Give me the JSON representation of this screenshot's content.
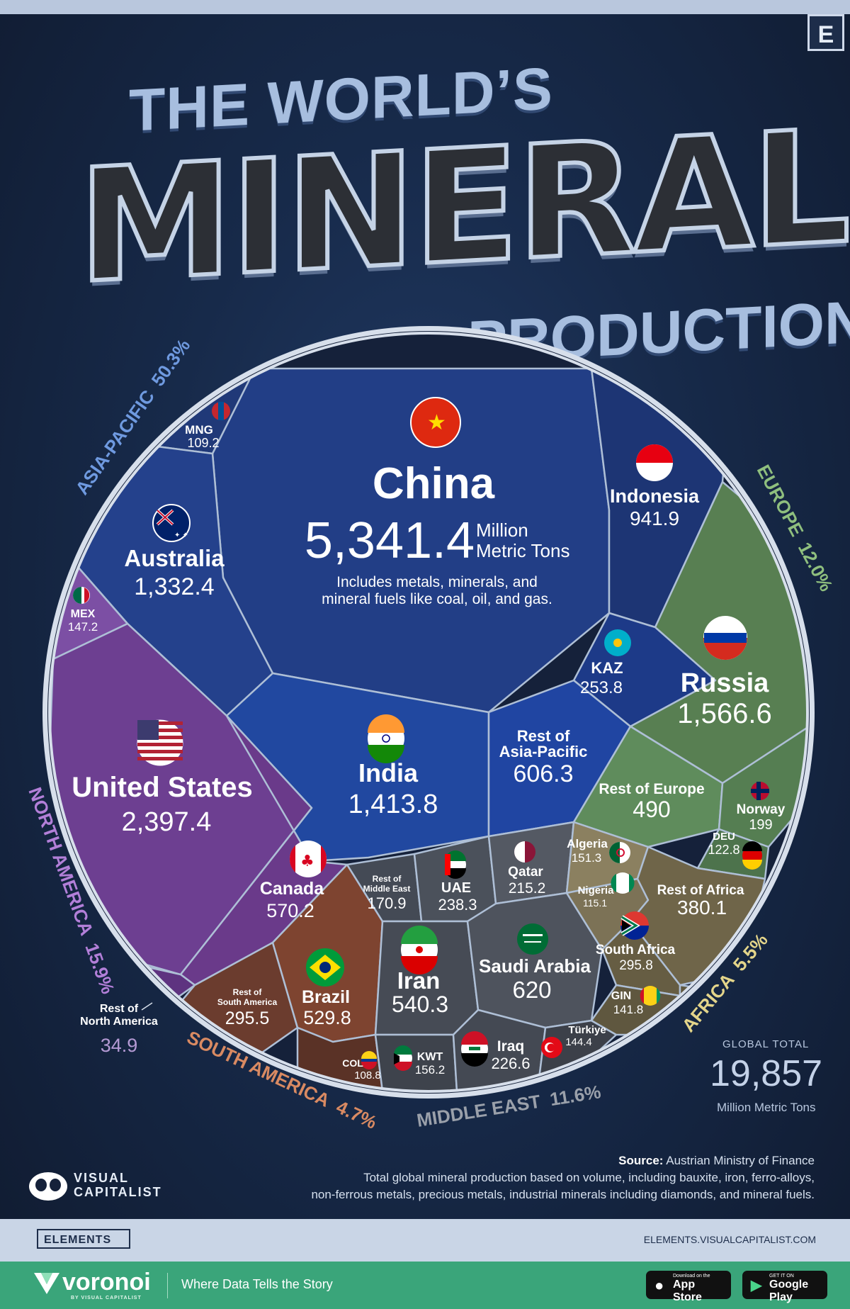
{
  "header": {
    "badge": "E",
    "title_line1": "THE WORLD’S",
    "title_line2": "MINERAL",
    "title_line3": "PRODUCTION"
  },
  "chart_data": {
    "type": "voronoi-treemap",
    "unit": "Million Metric Tons",
    "regions": [
      {
        "name": "ASIA-PACIFIC",
        "share": "50.3%",
        "color": "#5b8ad6"
      },
      {
        "name": "EUROPE",
        "share": "12.0%",
        "color": "#7aa76a"
      },
      {
        "name": "NORTH AMERICA",
        "share": "15.9%",
        "color": "#9a63c0"
      },
      {
        "name": "SOUTH AMERICA",
        "share": "4.7%",
        "color": "#c87852"
      },
      {
        "name": "MIDDLE EAST",
        "share": "11.6%",
        "color": "#8e8e8e"
      },
      {
        "name": "AFRICA",
        "share": "5.5%",
        "color": "#d8c97a"
      }
    ],
    "cells": [
      {
        "name": "China",
        "value": "5,341.4",
        "region": "ASIA-PACIFIC"
      },
      {
        "name": "Indonesia",
        "value": "941.9",
        "region": "ASIA-PACIFIC"
      },
      {
        "name": "Australia",
        "value": "1,332.4",
        "region": "ASIA-PACIFIC"
      },
      {
        "name": "MNG",
        "value": "109.2",
        "region": "ASIA-PACIFIC"
      },
      {
        "name": "India",
        "value": "1,413.8",
        "region": "ASIA-PACIFIC"
      },
      {
        "name": "KAZ",
        "value": "253.8",
        "region": "ASIA-PACIFIC"
      },
      {
        "name": "Rest of Asia-Pacific",
        "value": "606.3",
        "region": "ASIA-PACIFIC"
      },
      {
        "name": "Russia",
        "value": "1,566.6",
        "region": "EUROPE"
      },
      {
        "name": "Rest of Europe",
        "value": "490",
        "region": "EUROPE"
      },
      {
        "name": "Norway",
        "value": "199",
        "region": "EUROPE"
      },
      {
        "name": "DEU",
        "value": "122.8",
        "region": "EUROPE"
      },
      {
        "name": "United States",
        "value": "2,397.4",
        "region": "NORTH AMERICA"
      },
      {
        "name": "MEX",
        "value": "147.2",
        "region": "NORTH AMERICA"
      },
      {
        "name": "Canada",
        "value": "570.2",
        "region": "NORTH AMERICA"
      },
      {
        "name": "Rest of North America",
        "value": "34.9",
        "region": "NORTH AMERICA"
      },
      {
        "name": "Brazil",
        "value": "529.8",
        "region": "SOUTH AMERICA"
      },
      {
        "name": "Rest of South America",
        "value": "295.5",
        "region": "SOUTH AMERICA"
      },
      {
        "name": "COL",
        "value": "108.8",
        "region": "SOUTH AMERICA"
      },
      {
        "name": "Saudi Arabia",
        "value": "620",
        "region": "MIDDLE EAST"
      },
      {
        "name": "Iran",
        "value": "540.3",
        "region": "MIDDLE EAST"
      },
      {
        "name": "UAE",
        "value": "238.3",
        "region": "MIDDLE EAST"
      },
      {
        "name": "Qatar",
        "value": "215.2",
        "region": "MIDDLE EAST"
      },
      {
        "name": "Rest of Middle East",
        "value": "170.9",
        "region": "MIDDLE EAST"
      },
      {
        "name": "Iraq",
        "value": "226.6",
        "region": "MIDDLE EAST"
      },
      {
        "name": "KWT",
        "value": "156.2",
        "region": "MIDDLE EAST"
      },
      {
        "name": "Türkiye",
        "value": "144.4",
        "region": "MIDDLE EAST"
      },
      {
        "name": "Rest of Africa",
        "value": "380.1",
        "region": "AFRICA"
      },
      {
        "name": "South Africa",
        "value": "295.8",
        "region": "AFRICA"
      },
      {
        "name": "Algeria",
        "value": "151.3",
        "region": "AFRICA"
      },
      {
        "name": "GIN",
        "value": "141.8",
        "region": "AFRICA"
      },
      {
        "name": "Nigeria",
        "value": "115.1",
        "region": "AFRICA"
      }
    ],
    "china_unit_line1": "Million",
    "china_unit_line2": "Metric Tons",
    "china_note_line1": "Includes metals, minerals, and",
    "china_note_line2": "mineral fuels like coal, oil, and gas."
  },
  "total": {
    "label": "GLOBAL TOTAL",
    "value": "19,857",
    "unit": "Million Metric Tons"
  },
  "source": {
    "label": "Source:",
    "text": "Austrian Ministry of Finance",
    "note_line1": "Total global mineral production based on volume, including bauxite, iron, ferro-alloys,",
    "note_line2": "non-ferrous metals, precious metals, industrial minerals including diamonds, and mineral fuels."
  },
  "branding": {
    "vc_line1": "VISUAL",
    "vc_line2": "CAPITALIST",
    "elements": "ELEMENTS",
    "elements_url": "ELEMENTS.VISUALCAPITALIST.COM",
    "voronoi": "voronoi",
    "voronoi_sub": "BY VISUAL CAPITALIST",
    "tagline": "Where Data Tells the Story",
    "appstore_small": "Download on the",
    "appstore": "App Store",
    "googleplay_small": "GET IT ON",
    "googleplay": "Google Play"
  }
}
